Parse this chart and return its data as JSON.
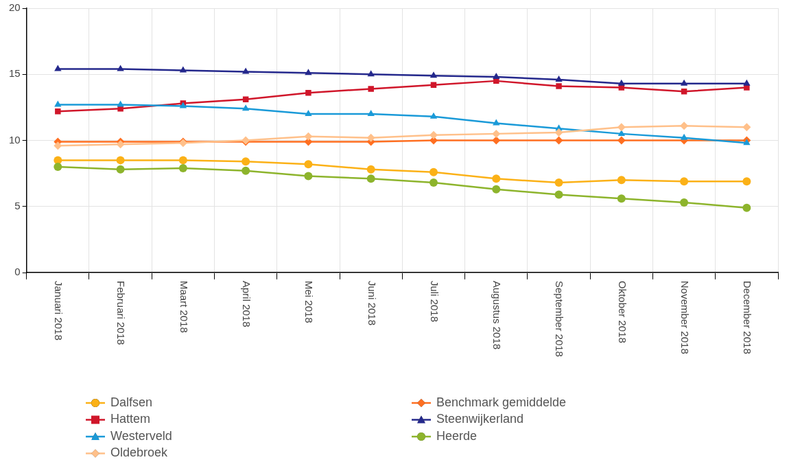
{
  "chart_data": {
    "type": "line",
    "categories": [
      "Januari 2018",
      "Februari 2018",
      "Maart 2018",
      "April 2018",
      "Mei 2018",
      "Juni 2018",
      "Juli 2018",
      "Augustus 2018",
      "September 2018",
      "Oktober 2018",
      "November 2018",
      "December 2018"
    ],
    "ylim": [
      0,
      20
    ],
    "yticks": [
      0,
      5,
      10,
      15,
      20
    ],
    "grid": true,
    "legend": "bottom",
    "series": [
      {
        "name": "Dalfsen",
        "color": "#fbb117",
        "marker": "circle",
        "values": [
          8.5,
          8.5,
          8.5,
          8.4,
          8.2,
          7.8,
          7.6,
          7.1,
          6.8,
          7.0,
          6.9,
          6.9
        ]
      },
      {
        "name": "Benchmark gemiddelde",
        "color": "#ff6f21",
        "marker": "diamond",
        "values": [
          9.9,
          9.9,
          9.9,
          9.9,
          9.9,
          9.9,
          10.0,
          10.0,
          10.0,
          10.0,
          10.0,
          10.0
        ]
      },
      {
        "name": "Hattem",
        "color": "#d0162a",
        "marker": "square",
        "values": [
          12.2,
          12.4,
          12.8,
          13.1,
          13.6,
          13.9,
          14.2,
          14.5,
          14.1,
          14.0,
          13.7,
          14.0
        ]
      },
      {
        "name": "Steenwijkerland",
        "color": "#24288c",
        "marker": "triangle",
        "values": [
          15.4,
          15.4,
          15.3,
          15.2,
          15.1,
          15.0,
          14.9,
          14.8,
          14.6,
          14.3,
          14.3,
          14.3
        ]
      },
      {
        "name": "Westerveld",
        "color": "#1a9ad8",
        "marker": "triangle",
        "values": [
          12.7,
          12.7,
          12.6,
          12.4,
          12.0,
          12.0,
          11.8,
          11.3,
          10.9,
          10.5,
          10.2,
          9.8
        ]
      },
      {
        "name": "Heerde",
        "color": "#8db42c",
        "marker": "circle",
        "values": [
          8.0,
          7.8,
          7.9,
          7.7,
          7.3,
          7.1,
          6.8,
          6.3,
          5.9,
          5.6,
          5.3,
          4.9
        ]
      },
      {
        "name": "Oldebroek",
        "color": "#ffc08a",
        "marker": "diamond",
        "values": [
          9.6,
          9.7,
          9.8,
          10.0,
          10.3,
          10.2,
          10.4,
          10.5,
          10.6,
          11.0,
          11.1,
          11.0
        ]
      }
    ]
  }
}
